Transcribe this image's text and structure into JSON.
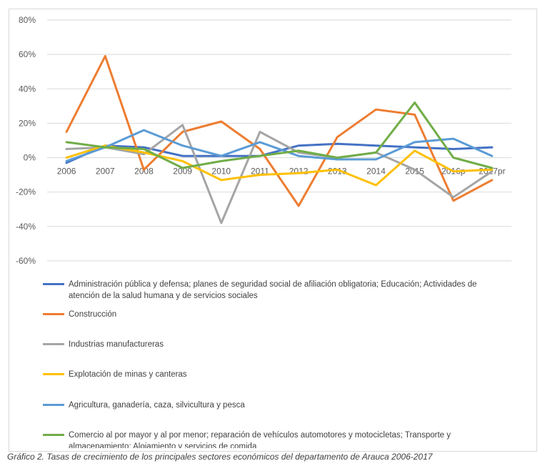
{
  "chart_data": {
    "type": "line",
    "categories": [
      "2006",
      "2007",
      "2008",
      "2009",
      "2010",
      "2011",
      "2012",
      "2013",
      "2014",
      "2015",
      "2016p",
      "2017pr"
    ],
    "y_ticks": [
      "80%",
      "60%",
      "40%",
      "20%",
      "0%",
      "-20%",
      "-40%",
      "-60%"
    ],
    "ylim": [
      -60,
      80
    ],
    "grid": true,
    "legend_position": "bottom",
    "series": [
      {
        "name": "Administración pública y defensa; planes de seguridad social de afiliación obligatoria; Educación; Actividades de atención de la salud humana y de servicios sociales",
        "color": "#4472c4",
        "values": [
          -3,
          7,
          6,
          1,
          1,
          1,
          7,
          8,
          7,
          6,
          5,
          6
        ]
      },
      {
        "name": "Construcción",
        "color": "#ed7d31",
        "values": [
          15,
          59,
          -7,
          15,
          21,
          5,
          -28,
          12,
          28,
          25,
          -25,
          -13
        ]
      },
      {
        "name": "Industrias manufactureras",
        "color": "#a5a5a5",
        "values": [
          5,
          6,
          2,
          19,
          -38,
          15,
          3,
          0,
          3,
          -7,
          -23,
          -8
        ]
      },
      {
        "name": "Explotación de minas y canteras",
        "color": "#ffc000",
        "values": [
          0,
          7,
          3,
          -2,
          -13,
          -10,
          -9,
          -7,
          -16,
          4,
          -8,
          -7
        ]
      },
      {
        "name": "Agricultura, ganadería, caza, silvicultura y pesca",
        "color": "#5b9bd5",
        "values": [
          -2,
          6,
          16,
          7,
          1,
          9,
          1,
          -1,
          -1,
          9,
          11,
          1
        ]
      },
      {
        "name": "Comercio al por mayor y al por menor; reparación de vehículos automotores y motocicletas; Transporte y almacenamiento; Alojamiento y servicios de comida",
        "color": "#70ad47",
        "values": [
          9,
          6,
          5,
          -6,
          -2,
          1,
          4,
          0,
          3,
          32,
          0,
          -6
        ]
      }
    ]
  },
  "caption": "Gráfico 2. Tasas de crecimiento de los principales sectores económicos del departamento de Arauca 2006-2017"
}
